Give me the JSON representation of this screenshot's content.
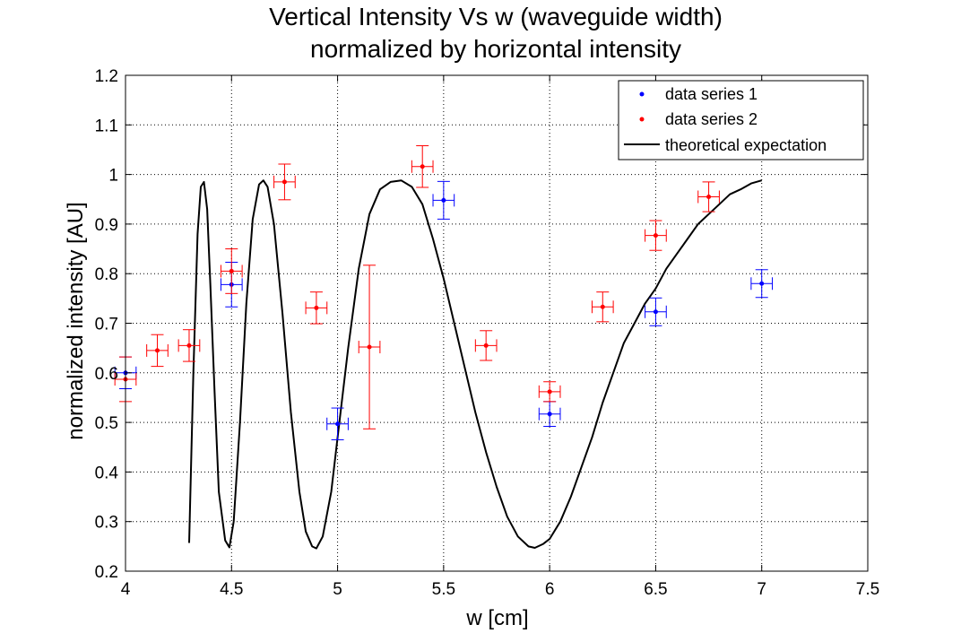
{
  "chart_data": {
    "type": "scatter",
    "title": [
      "Vertical Intensity Vs w (waveguide width)",
      "normalized by horizontal intensity"
    ],
    "xlabel": "w [cm]",
    "ylabel": "normalized intensity [AU]",
    "xlim": [
      4,
      7.5
    ],
    "ylim": [
      0.2,
      1.2
    ],
    "xticks": [
      "4",
      "4.5",
      "5",
      "5.5",
      "6",
      "6.5",
      "7",
      "7.5"
    ],
    "yticks": [
      "0.2",
      "0.3",
      "0.4",
      "0.5",
      "0.6",
      "0.7",
      "0.8",
      "0.9",
      "1",
      "1.1",
      "1.2"
    ],
    "grid": true,
    "legend_position": "top-right",
    "series": [
      {
        "name": "data series 1",
        "color": "#0000ff",
        "points": [
          {
            "x": 4.0,
            "y": 0.6,
            "yerr": 0.032,
            "xerr": 0.05
          },
          {
            "x": 4.5,
            "y": 0.778,
            "yerr": 0.045,
            "xerr": 0.05
          },
          {
            "x": 5.0,
            "y": 0.497,
            "yerr": 0.032,
            "xerr": 0.05
          },
          {
            "x": 5.5,
            "y": 0.948,
            "yerr": 0.038,
            "xerr": 0.05
          },
          {
            "x": 6.0,
            "y": 0.517,
            "yerr": 0.025,
            "xerr": 0.05
          },
          {
            "x": 6.5,
            "y": 0.723,
            "yerr": 0.028,
            "xerr": 0.05
          },
          {
            "x": 7.0,
            "y": 0.78,
            "yerr": 0.028,
            "xerr": 0.05
          }
        ]
      },
      {
        "name": "data series 2",
        "color": "#ff0000",
        "points": [
          {
            "x": 4.0,
            "y": 0.587,
            "yerr": 0.045,
            "xerr": 0.05
          },
          {
            "x": 4.15,
            "y": 0.645,
            "yerr": 0.032,
            "xerr": 0.05
          },
          {
            "x": 4.3,
            "y": 0.655,
            "yerr": 0.032,
            "xerr": 0.05
          },
          {
            "x": 4.5,
            "y": 0.805,
            "yerr": 0.045,
            "xerr": 0.05
          },
          {
            "x": 4.75,
            "y": 0.985,
            "yerr": 0.036,
            "xerr": 0.05
          },
          {
            "x": 4.9,
            "y": 0.731,
            "yerr": 0.032,
            "xerr": 0.05
          },
          {
            "x": 5.15,
            "y": 0.652,
            "yerr": 0.165,
            "xerr": 0.05
          },
          {
            "x": 5.4,
            "y": 1.016,
            "yerr": 0.042,
            "xerr": 0.05
          },
          {
            "x": 5.7,
            "y": 0.655,
            "yerr": 0.03,
            "xerr": 0.05
          },
          {
            "x": 6.0,
            "y": 0.562,
            "yerr": 0.02,
            "xerr": 0.05
          },
          {
            "x": 6.25,
            "y": 0.733,
            "yerr": 0.03,
            "xerr": 0.05
          },
          {
            "x": 6.5,
            "y": 0.877,
            "yerr": 0.03,
            "xerr": 0.05
          },
          {
            "x": 6.75,
            "y": 0.955,
            "yerr": 0.03,
            "xerr": 0.05
          }
        ]
      }
    ],
    "theory": {
      "name": "theoretical expectation",
      "color": "#000000",
      "points": [
        [
          4.3,
          0.257
        ],
        [
          4.32,
          0.6
        ],
        [
          4.34,
          0.88
        ],
        [
          4.355,
          0.975
        ],
        [
          4.37,
          0.985
        ],
        [
          4.385,
          0.93
        ],
        [
          4.4,
          0.78
        ],
        [
          4.42,
          0.56
        ],
        [
          4.44,
          0.36
        ],
        [
          4.47,
          0.262
        ],
        [
          4.49,
          0.248
        ],
        [
          4.51,
          0.3
        ],
        [
          4.54,
          0.5
        ],
        [
          4.57,
          0.74
        ],
        [
          4.6,
          0.91
        ],
        [
          4.63,
          0.98
        ],
        [
          4.65,
          0.988
        ],
        [
          4.67,
          0.975
        ],
        [
          4.7,
          0.9
        ],
        [
          4.74,
          0.72
        ],
        [
          4.78,
          0.52
        ],
        [
          4.82,
          0.36
        ],
        [
          4.85,
          0.28
        ],
        [
          4.88,
          0.25
        ],
        [
          4.9,
          0.246
        ],
        [
          4.93,
          0.27
        ],
        [
          4.97,
          0.36
        ],
        [
          5.0,
          0.47
        ],
        [
          5.05,
          0.65
        ],
        [
          5.1,
          0.81
        ],
        [
          5.15,
          0.92
        ],
        [
          5.2,
          0.97
        ],
        [
          5.25,
          0.985
        ],
        [
          5.3,
          0.988
        ],
        [
          5.35,
          0.975
        ],
        [
          5.4,
          0.94
        ],
        [
          5.45,
          0.87
        ],
        [
          5.5,
          0.79
        ],
        [
          5.55,
          0.7
        ],
        [
          5.6,
          0.61
        ],
        [
          5.65,
          0.52
        ],
        [
          5.7,
          0.44
        ],
        [
          5.75,
          0.37
        ],
        [
          5.8,
          0.31
        ],
        [
          5.85,
          0.27
        ],
        [
          5.9,
          0.25
        ],
        [
          5.93,
          0.247
        ],
        [
          5.97,
          0.255
        ],
        [
          6.0,
          0.265
        ],
        [
          6.05,
          0.3
        ],
        [
          6.1,
          0.35
        ],
        [
          6.15,
          0.41
        ],
        [
          6.2,
          0.47
        ],
        [
          6.25,
          0.54
        ],
        [
          6.3,
          0.6
        ],
        [
          6.35,
          0.66
        ],
        [
          6.4,
          0.7
        ],
        [
          6.45,
          0.74
        ],
        [
          6.5,
          0.77
        ],
        [
          6.55,
          0.81
        ],
        [
          6.6,
          0.84
        ],
        [
          6.65,
          0.87
        ],
        [
          6.7,
          0.9
        ],
        [
          6.75,
          0.92
        ],
        [
          6.8,
          0.94
        ],
        [
          6.85,
          0.96
        ],
        [
          6.9,
          0.97
        ],
        [
          6.95,
          0.982
        ],
        [
          7.0,
          0.988
        ]
      ]
    }
  }
}
